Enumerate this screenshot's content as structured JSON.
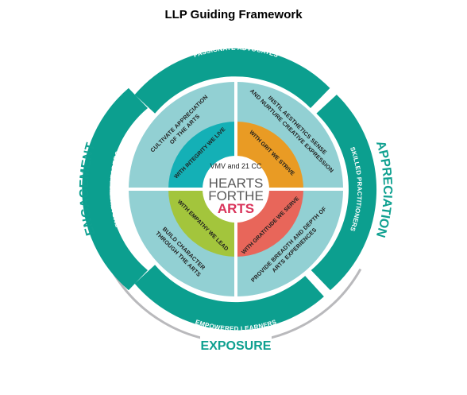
{
  "title": "LLP Guiding Framework",
  "colors": {
    "teal": "#0c9f8f",
    "light_teal": "#92d0d3",
    "cyan": "#14b0b6",
    "orange": "#e99b24",
    "green": "#a3c53c",
    "coral": "#e8665a",
    "grey_arc": "#b9b9bc",
    "center_dark": "#5a5a5a",
    "center_pink": "#d9335a"
  },
  "outer_ring": {
    "top": "PASSIONATE ADVOCATES",
    "right": "SKILLED PRACTITIONERS",
    "bottom": "EMPOWERED LEARNERS",
    "left": "EMPATHETIC LEADERS"
  },
  "middle_ring": {
    "top_left": [
      "CULTIVATE APPRECIATION",
      "OF THE ARTS"
    ],
    "top_right": [
      "INSTIL AESTHETICS SENSE",
      "AND NURTURE CREATIVE EXPRESSION"
    ],
    "bottom_right": [
      "PROVIDE BREADTH AND DEPTH OF",
      "ARTS EXPERIENCES"
    ],
    "bottom_left": [
      "BUILD CHARACTER",
      "THROUGH THE ARTS"
    ]
  },
  "inner_ring": {
    "top_left": "WITH INTEGRITY WE LIVE",
    "top_right": "WITH GRIT WE STRIVE",
    "bottom_right": "WITH GRATITUDE WE SERVE",
    "bottom_left": "WITH EMPATHY WE LEAD"
  },
  "center": {
    "top_text": "VMV and 21 CC",
    "line1": "HEARTS",
    "line2": "FORTHE",
    "line3": "ARTS"
  },
  "external": {
    "left": "ENGAGEMENT",
    "right": "APPRECIATION",
    "bottom": "EXPOSURE"
  }
}
